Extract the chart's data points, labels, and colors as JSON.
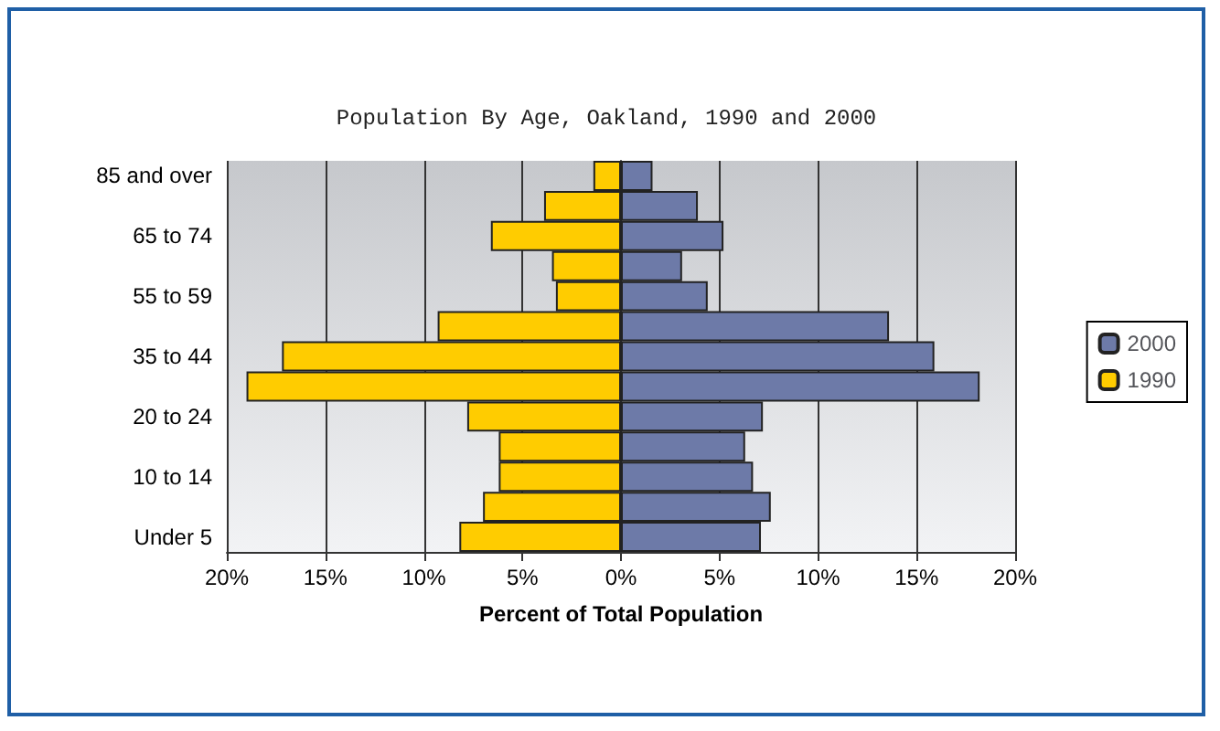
{
  "chart_data": {
    "type": "bar",
    "title": "Population By Age, Oakland, 1990 and 2000",
    "xlabel": "Percent of Total Population",
    "orientation": "horizontal",
    "stacked": true,
    "categories": [
      "85 and over",
      null,
      "65 to 74",
      null,
      "55 to 59",
      null,
      "35 to 44",
      null,
      "20 to 24",
      null,
      "10 to 14",
      null,
      "Under 5"
    ],
    "series": [
      {
        "name": "2000",
        "color": "#6d7aa8",
        "values": [
          1.6,
          3.9,
          5.2,
          3.1,
          4.4,
          13.6,
          15.9,
          18.2,
          7.2,
          6.3,
          6.7,
          7.6,
          7.1
        ]
      },
      {
        "name": "1990",
        "color": "#ffcc00",
        "values": [
          -1.4,
          -3.9,
          -6.6,
          -3.5,
          -3.3,
          -9.3,
          -17.2,
          -19.0,
          -7.8,
          -6.2,
          -6.2,
          -7.0,
          -8.2
        ]
      }
    ],
    "xlim": [
      -20,
      20
    ],
    "xticks": [
      {
        "value": -20,
        "label": "20%"
      },
      {
        "value": -15,
        "label": "15%"
      },
      {
        "value": -10,
        "label": "10%"
      },
      {
        "value": -5,
        "label": "5%"
      },
      {
        "value": 0,
        "label": "0%"
      },
      {
        "value": 5,
        "label": "5%"
      },
      {
        "value": 10,
        "label": "10%"
      },
      {
        "value": 15,
        "label": "15%"
      },
      {
        "value": 20,
        "label": "20%"
      }
    ],
    "grid": "x",
    "legend": "right"
  }
}
